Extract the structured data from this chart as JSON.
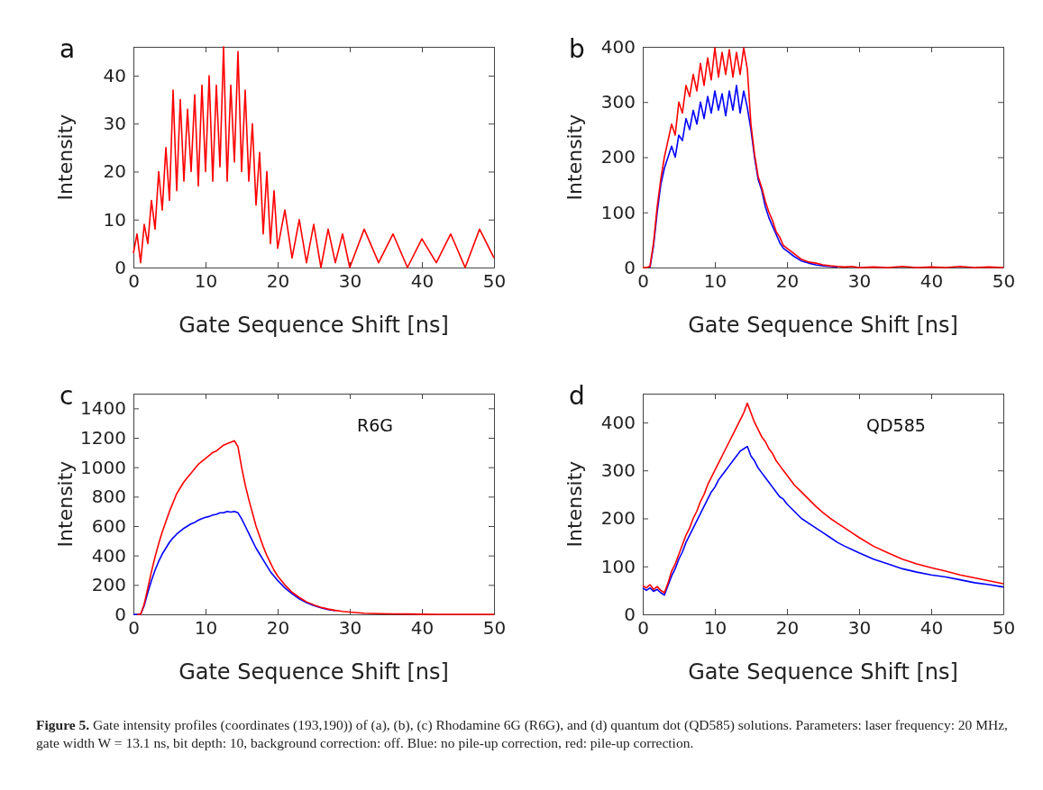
{
  "chart_data": [
    {
      "type": "line",
      "title": "a",
      "xlabel": "Gate Sequence Shift [ns]",
      "ylabel": "Intensity",
      "xlim": [
        0,
        50
      ],
      "xticks": [
        0,
        10,
        20,
        30,
        40,
        50
      ],
      "ylim": [
        0,
        46
      ],
      "yticks": [
        0,
        10,
        20,
        30,
        40
      ],
      "grid": false,
      "x": [
        0,
        0.5,
        1,
        1.5,
        2,
        2.5,
        3,
        3.5,
        4,
        4.5,
        5,
        5.5,
        6,
        6.5,
        7,
        7.5,
        8,
        8.5,
        9,
        9.5,
        10,
        10.5,
        11,
        11.5,
        12,
        12.5,
        13,
        13.5,
        14,
        14.5,
        15,
        15.5,
        16,
        16.5,
        17,
        17.5,
        18,
        18.5,
        19,
        19.5,
        20,
        21,
        22,
        23,
        24,
        25,
        26,
        27,
        28,
        29,
        30,
        32,
        34,
        36,
        38,
        40,
        42,
        44,
        46,
        48,
        50
      ],
      "series": [
        {
          "color": "#ff0000",
          "values": [
            3,
            7,
            1,
            9,
            5,
            14,
            8,
            20,
            12,
            25,
            14,
            37,
            16,
            35,
            18,
            33,
            20,
            36,
            17,
            38,
            20,
            40,
            18,
            38,
            21,
            46,
            18,
            38,
            22,
            45,
            20,
            37,
            18,
            30,
            13,
            24,
            7,
            20,
            5,
            16,
            4,
            12,
            2,
            10,
            1,
            9,
            0,
            8,
            1,
            7,
            0,
            8,
            1,
            7,
            0,
            6,
            1,
            7,
            0,
            8,
            2
          ]
        }
      ]
    },
    {
      "type": "line",
      "title": "b",
      "xlabel": "Gate Sequence Shift [ns]",
      "ylabel": "Intensity",
      "xlim": [
        0,
        50
      ],
      "xticks": [
        0,
        10,
        20,
        30,
        40,
        50
      ],
      "ylim": [
        0,
        400
      ],
      "yticks": [
        0,
        100,
        200,
        300,
        400
      ],
      "grid": false,
      "x": [
        0,
        0.5,
        1,
        1.5,
        2,
        2.5,
        3,
        3.5,
        4,
        4.5,
        5,
        5.5,
        6,
        6.5,
        7,
        7.5,
        8,
        8.5,
        9,
        9.5,
        10,
        10.5,
        11,
        11.5,
        12,
        12.5,
        13,
        13.5,
        14,
        14.5,
        15,
        15.5,
        16,
        16.5,
        17,
        17.5,
        18,
        18.5,
        19,
        19.5,
        20,
        21,
        22,
        23,
        24,
        25,
        26,
        27,
        28,
        29,
        30,
        32,
        34,
        36,
        38,
        40,
        42,
        44,
        46,
        48,
        50
      ],
      "series": [
        {
          "color": "#0000ff",
          "values": [
            null,
            null,
            0,
            40,
            100,
            150,
            180,
            200,
            220,
            200,
            240,
            230,
            270,
            250,
            285,
            260,
            300,
            270,
            310,
            280,
            320,
            285,
            315,
            275,
            320,
            285,
            330,
            280,
            320,
            290,
            250,
            200,
            160,
            140,
            110,
            90,
            75,
            60,
            45,
            35,
            30,
            20,
            12,
            8,
            5,
            3,
            2,
            1,
            null,
            null,
            null,
            null,
            null,
            null,
            null,
            null,
            null,
            null,
            null,
            null,
            null
          ]
        },
        {
          "color": "#ff0000",
          "values": [
            0,
            0,
            2,
            45,
            110,
            160,
            200,
            230,
            260,
            240,
            300,
            280,
            330,
            310,
            350,
            320,
            370,
            330,
            380,
            340,
            398,
            345,
            390,
            350,
            395,
            345,
            390,
            350,
            398,
            360,
            260,
            205,
            165,
            145,
            120,
            100,
            85,
            65,
            55,
            40,
            35,
            25,
            15,
            10,
            8,
            5,
            3,
            2,
            1,
            2,
            0,
            1,
            0,
            2,
            0,
            1,
            0,
            2,
            0,
            1,
            0
          ]
        }
      ]
    },
    {
      "type": "line",
      "title": "c",
      "xlabel": "Gate Sequence Shift [ns]",
      "ylabel": "Intensity",
      "xlim": [
        0,
        50
      ],
      "xticks": [
        0,
        10,
        20,
        30,
        40,
        50
      ],
      "ylim": [
        0,
        1500
      ],
      "yticks": [
        0,
        200,
        400,
        600,
        800,
        1000,
        1200,
        1400
      ],
      "grid": false,
      "annotations": [
        "R6G"
      ],
      "x": [
        0,
        0.5,
        1,
        1.5,
        2,
        2.5,
        3,
        3.5,
        4,
        4.5,
        5,
        5.5,
        6,
        6.5,
        7,
        7.5,
        8,
        8.5,
        9,
        9.5,
        10,
        10.5,
        11,
        11.5,
        12,
        12.5,
        13,
        13.5,
        14,
        14.5,
        15,
        15.5,
        16,
        16.5,
        17,
        17.5,
        18,
        18.5,
        19,
        19.5,
        20,
        21,
        22,
        23,
        24,
        25,
        26,
        27,
        28,
        29,
        30,
        32,
        34,
        36,
        38,
        40,
        42,
        44,
        46,
        48,
        50
      ],
      "series": [
        {
          "color": "#0000ff",
          "values": [
            0,
            0,
            0,
            60,
            150,
            230,
            300,
            360,
            410,
            450,
            490,
            520,
            545,
            565,
            585,
            600,
            615,
            625,
            640,
            650,
            660,
            665,
            675,
            680,
            690,
            690,
            700,
            695,
            700,
            690,
            650,
            600,
            550,
            500,
            450,
            410,
            370,
            330,
            290,
            260,
            230,
            180,
            140,
            105,
            80,
            60,
            45,
            33,
            25,
            null,
            null,
            null,
            null,
            null,
            null,
            null,
            null,
            null,
            null,
            null,
            null
          ]
        },
        {
          "color": "#ff0000",
          "values": [
            null,
            0,
            0,
            70,
            180,
            290,
            390,
            480,
            560,
            630,
            700,
            760,
            820,
            860,
            900,
            930,
            960,
            990,
            1020,
            1040,
            1060,
            1080,
            1100,
            1110,
            1130,
            1150,
            1160,
            1170,
            1180,
            1140,
            1000,
            880,
            780,
            690,
            600,
            530,
            460,
            400,
            350,
            300,
            260,
            200,
            150,
            115,
            85,
            65,
            48,
            36,
            27,
            20,
            15,
            8,
            5,
            3,
            2,
            1,
            0,
            0,
            0,
            0,
            0
          ]
        }
      ]
    },
    {
      "type": "line",
      "title": "d",
      "xlabel": "Gate Sequence Shift [ns]",
      "ylabel": "Intensity",
      "xlim": [
        0,
        50
      ],
      "xticks": [
        0,
        10,
        20,
        30,
        40,
        50
      ],
      "ylim": [
        0,
        460
      ],
      "yticks": [
        0,
        100,
        200,
        300,
        400
      ],
      "grid": false,
      "annotations": [
        "QD585"
      ],
      "x": [
        0,
        0.5,
        1,
        1.5,
        2,
        2.5,
        3,
        3.5,
        4,
        4.5,
        5,
        5.5,
        6,
        6.5,
        7,
        7.5,
        8,
        8.5,
        9,
        9.5,
        10,
        10.5,
        11,
        11.5,
        12,
        12.5,
        13,
        13.5,
        14,
        14.5,
        15,
        15.5,
        16,
        16.5,
        17,
        17.5,
        18,
        18.5,
        19,
        19.5,
        20,
        21,
        22,
        23,
        24,
        25,
        26,
        27,
        28,
        29,
        30,
        32,
        34,
        36,
        38,
        40,
        42,
        44,
        46,
        48,
        50
      ],
      "series": [
        {
          "color": "#0000ff",
          "values": [
            55,
            50,
            55,
            48,
            52,
            45,
            40,
            60,
            80,
            95,
            115,
            130,
            150,
            165,
            180,
            195,
            210,
            225,
            240,
            255,
            265,
            280,
            290,
            300,
            310,
            320,
            330,
            340,
            345,
            350,
            330,
            320,
            305,
            295,
            285,
            275,
            265,
            255,
            245,
            240,
            230,
            215,
            200,
            190,
            180,
            170,
            160,
            150,
            142,
            135,
            128,
            115,
            105,
            95,
            88,
            82,
            78,
            72,
            66,
            62,
            57
          ]
        },
        {
          "color": "#ff0000",
          "values": [
            60,
            55,
            62,
            52,
            58,
            50,
            45,
            65,
            90,
            105,
            125,
            145,
            165,
            180,
            200,
            215,
            235,
            250,
            270,
            285,
            300,
            315,
            330,
            345,
            360,
            375,
            390,
            405,
            420,
            440,
            420,
            400,
            385,
            370,
            360,
            345,
            335,
            320,
            310,
            300,
            290,
            270,
            255,
            240,
            225,
            212,
            200,
            190,
            180,
            170,
            160,
            142,
            128,
            115,
            105,
            97,
            90,
            82,
            76,
            70,
            64
          ]
        }
      ]
    },
    {
      "type": "other",
      "title": "Figure 5.",
      "annotations": [
        "Gate intensity profiles (coordinates (193,190)) of (a), (b), (c) Rhodamine 6G (R6G), and (d) quantum dot (QD585) solutions. Parameters: laser frequency: 20 MHz, gate width W = 13.1 ns, bit depth: 10, background correction: off. Blue: no pile-up correction, red: pile-up correction."
      ]
    }
  ]
}
